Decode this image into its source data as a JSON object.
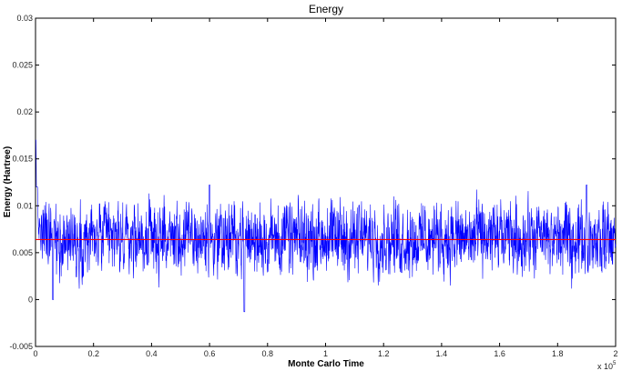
{
  "chart_data": {
    "type": "line",
    "title": "Energy",
    "xlabel": "Monte Carlo Time",
    "ylabel": "Energy (Hartree)",
    "x_multiplier_label": "x 10",
    "x_multiplier_exponent": "5",
    "xlim": [
      0,
      2
    ],
    "ylim": [
      -0.005,
      0.03
    ],
    "x_ticks": [
      0,
      0.2,
      0.4,
      0.6,
      0.8,
      1,
      1.2,
      1.4,
      1.6,
      1.8,
      2
    ],
    "x_tick_labels": [
      "0",
      "0.2",
      "0.4",
      "0.6",
      "0.8",
      "1",
      "1.2",
      "1.4",
      "1.6",
      "1.8",
      "2"
    ],
    "y_ticks": [
      -0.005,
      0,
      0.005,
      0.01,
      0.015,
      0.02,
      0.025,
      0.03
    ],
    "y_tick_labels": [
      "-0.005",
      "0",
      "0.005",
      "0.01",
      "0.015",
      "0.02",
      "0.025",
      "0.03"
    ],
    "grid": false,
    "series": [
      {
        "color": "#0000ff",
        "style": "noisy trace",
        "x": [
          0,
          0.005,
          0.01,
          0.02,
          0.04,
          0.06,
          0.1,
          0.15,
          0.2,
          0.25,
          0.3,
          0.35,
          0.4,
          0.45,
          0.5,
          0.55,
          0.6,
          0.65,
          0.7,
          0.72,
          0.75,
          0.8,
          0.85,
          0.9,
          0.95,
          1.0,
          1.05,
          1.1,
          1.15,
          1.2,
          1.25,
          1.3,
          1.35,
          1.4,
          1.45,
          1.5,
          1.55,
          1.6,
          1.65,
          1.7,
          1.75,
          1.8,
          1.85,
          1.9,
          1.95,
          2.0
        ],
        "values": [
          0.017,
          0.012,
          0.008,
          0.006,
          0.0065,
          0.0,
          0.007,
          0.006,
          0.0065,
          0.006,
          0.0065,
          0.006,
          0.007,
          0.0065,
          0.006,
          0.0065,
          0.0122,
          0.007,
          0.0065,
          -0.0013,
          0.006,
          0.007,
          0.0065,
          0.006,
          0.0065,
          0.007,
          0.006,
          0.0065,
          0.006,
          0.0065,
          0.007,
          0.006,
          0.0065,
          0.007,
          0.006,
          0.0065,
          0.006,
          0.0065,
          0.007,
          0.006,
          0.0065,
          0.006,
          0.0065,
          0.0122,
          0.006,
          0.0065
        ]
      },
      {
        "color": "#ff0000",
        "style": "mean line",
        "x": [
          0,
          2
        ],
        "values": [
          0.0064,
          0.0064
        ]
      }
    ],
    "noise_band": {
      "low": 0.003,
      "high": 0.01,
      "mean": 0.0065
    }
  }
}
